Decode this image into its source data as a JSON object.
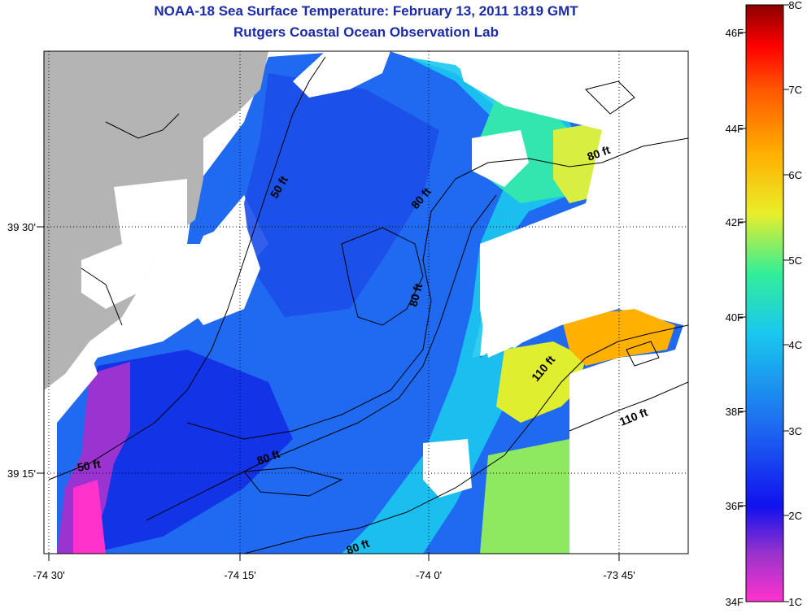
{
  "header": {
    "title": "NOAA-18 Sea Surface Temperature:  February 13, 2011 1819 GMT",
    "subtitle": "Rutgers Coastal Ocean Observation Lab"
  },
  "axes": {
    "x_ticks": [
      "-74 30'",
      "-74 15'",
      "-74 0'",
      "-73 45'"
    ],
    "y_ticks": [
      "39 30'",
      "39 15'"
    ]
  },
  "contours": [
    "50 ft",
    "80 ft",
    "80 ft",
    "80 ft",
    "80 ft",
    "80 ft",
    "110 ft",
    "110 ft",
    "50 ft"
  ],
  "colorbar": {
    "fahrenheit": [
      "46F",
      "44F",
      "42F",
      "40F",
      "38F",
      "36F",
      "34F"
    ],
    "celsius": [
      "8C",
      "7C",
      "6C",
      "5C",
      "4C",
      "3C",
      "2C",
      "1C"
    ],
    "colors": [
      "#ff33cc",
      "#9933cc",
      "#1111ee",
      "#1e6ef0",
      "#19c8ee",
      "#33ee99",
      "#e8ee2a",
      "#ffb000",
      "#ff5500",
      "#ff0000",
      "#8b0000"
    ]
  },
  "colors": {
    "land": "#b4b4b4",
    "title": "#1a2aa8",
    "no_data": "#ffffff"
  }
}
